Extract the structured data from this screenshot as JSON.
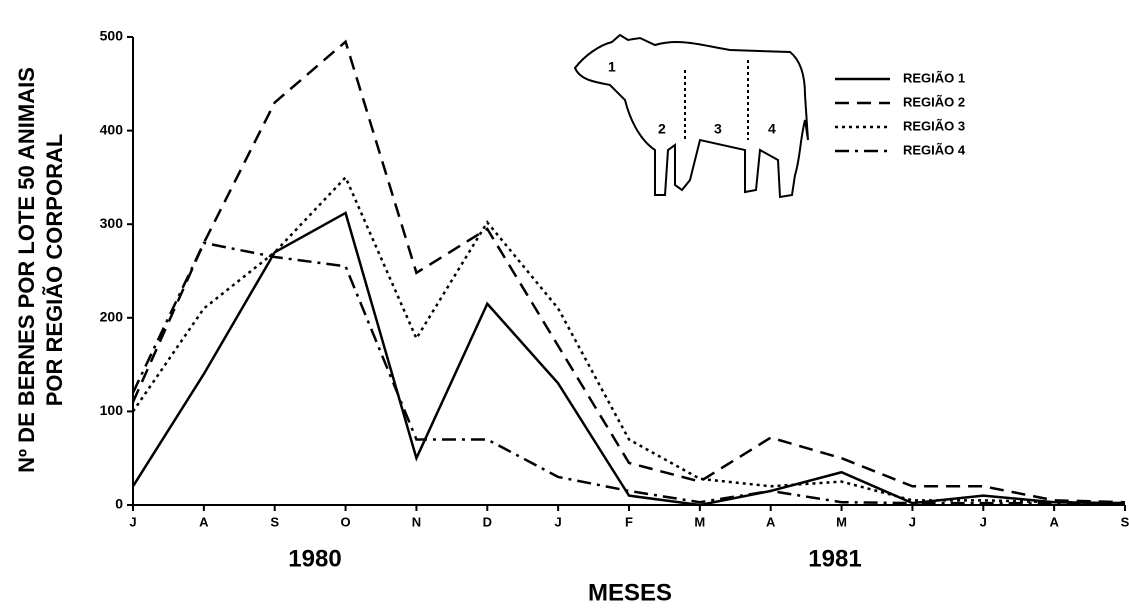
{
  "chart_data": {
    "type": "line",
    "y_axis_label": [
      "Nº DE BERNES POR LOTE 50 ANIMAIS",
      "POR REGIÃO CORPORAL"
    ],
    "x_axis_label": "MESES",
    "year_labels": [
      "1980",
      "1981"
    ],
    "illustration_labels": [
      "1",
      "2",
      "3",
      "4"
    ],
    "categories": [
      "J",
      "A",
      "S",
      "O",
      "N",
      "D",
      "J",
      "F",
      "M",
      "A",
      "M",
      "J",
      "J",
      "A",
      "S"
    ],
    "series": [
      {
        "name": "REGIÃO 1",
        "color": "#000000",
        "style": "solid",
        "values": [
          20,
          140,
          270,
          312,
          50,
          215,
          130,
          10,
          0,
          15,
          35,
          2,
          10,
          3,
          2
        ]
      },
      {
        "name": "REGIÃO 2",
        "color": "#000000",
        "style": "dashed",
        "values": [
          110,
          280,
          430,
          495,
          248,
          295,
          170,
          45,
          25,
          72,
          50,
          20,
          20,
          5,
          3
        ]
      },
      {
        "name": "REGIÃO 3",
        "color": "#000000",
        "style": "dotted",
        "values": [
          100,
          210,
          270,
          350,
          178,
          302,
          210,
          70,
          28,
          20,
          25,
          5,
          5,
          3,
          2
        ]
      },
      {
        "name": "REGIÃO 4",
        "color": "#000000",
        "style": "dashdot",
        "values": [
          120,
          280,
          265,
          255,
          70,
          70,
          30,
          15,
          3,
          15,
          3,
          2,
          2,
          2,
          2
        ]
      }
    ],
    "ylim": [
      0,
      500
    ],
    "yticks": [
      0,
      100,
      200,
      300,
      400,
      500
    ],
    "legend": "top-right"
  }
}
